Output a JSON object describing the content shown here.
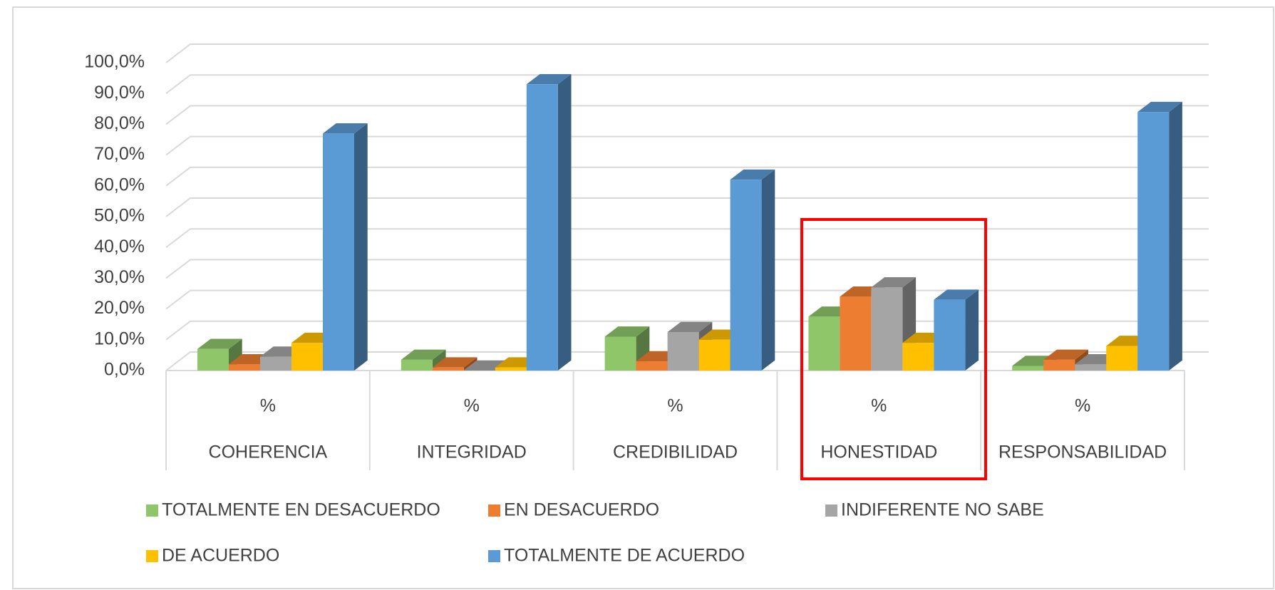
{
  "chart_data": {
    "type": "bar3d",
    "categories": [
      "COHERENCIA",
      "INTEGRIDAD",
      "CREDIBILIDAD",
      "HONESTIDAD",
      "RESPONSABILIDAD"
    ],
    "category_sublabels": [
      "%",
      "%",
      "%",
      "%",
      "%"
    ],
    "series": [
      {
        "name": "TOTALMENTE EN DESACUERDO",
        "color": "#8fc66a",
        "values": [
          7,
          3.5,
          11,
          17.5,
          1.5
        ]
      },
      {
        "name": "EN DESACUERDO",
        "color": "#ed7d31",
        "values": [
          2,
          1,
          3,
          24,
          3.5
        ]
      },
      {
        "name": "INDIFERENTE NO SABE",
        "color": "#a5a5a5",
        "values": [
          4.5,
          0,
          12.5,
          27,
          2
        ]
      },
      {
        "name": "DE ACUERDO",
        "color": "#ffc000",
        "values": [
          9,
          1,
          10,
          9,
          8
        ]
      },
      {
        "name": "TOTALMENTE DE ACUERDO",
        "color": "#5b9bd5",
        "values": [
          77,
          93,
          62,
          23,
          84
        ]
      }
    ],
    "ylim": [
      0,
      100
    ],
    "yticks": [
      {
        "value": 0,
        "label": "0,0%"
      },
      {
        "value": 10,
        "label": "10,0%"
      },
      {
        "value": 20,
        "label": "20,0%"
      },
      {
        "value": 30,
        "label": "30,0%"
      },
      {
        "value": 40,
        "label": "40,0%"
      },
      {
        "value": 50,
        "label": "50,0%"
      },
      {
        "value": 60,
        "label": "60,0%"
      },
      {
        "value": 70,
        "label": "70,0%"
      },
      {
        "value": 80,
        "label": "80,0%"
      },
      {
        "value": 90,
        "label": "90,0%"
      },
      {
        "value": 100,
        "label": "100,0%"
      }
    ],
    "grid": true,
    "legend": "bottom"
  }
}
